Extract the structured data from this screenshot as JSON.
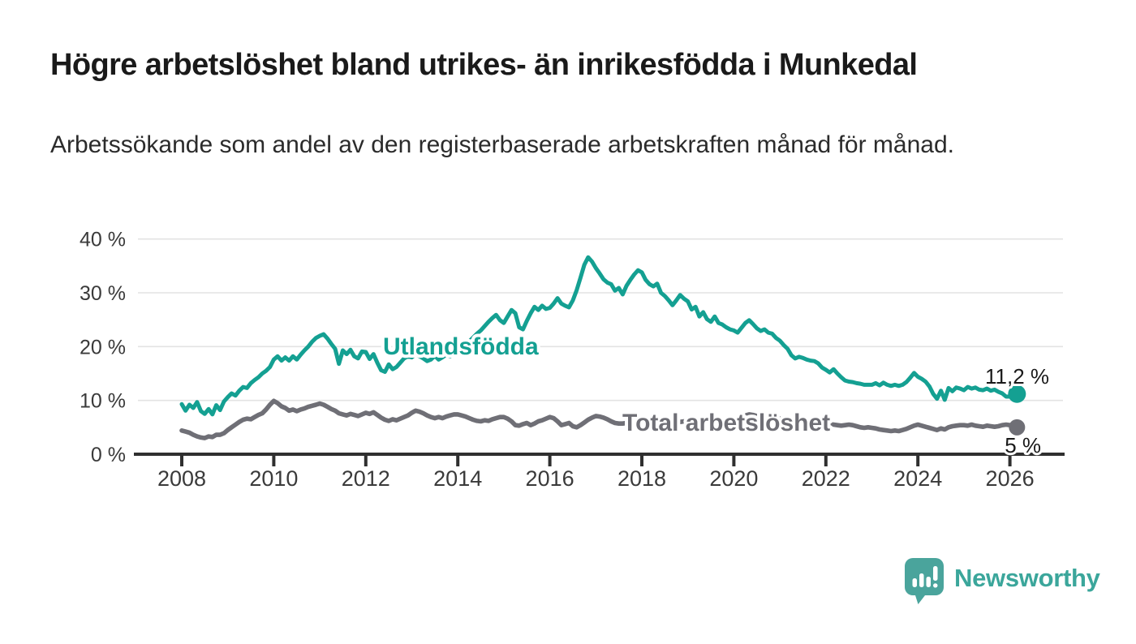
{
  "header": {
    "title": "Högre arbetslöshet bland utrikes- än inrikesfödda i Munkedal",
    "subtitle": "Arbetssökande som andel av den registerbaserade arbetskraften månad för månad."
  },
  "chart_data": {
    "type": "line",
    "title": "Högre arbetslöshet bland utrikes- än inrikesfödda i Munkedal",
    "subtitle": "Arbetssökande som andel av den registerbaserade arbetskraften månad för månad.",
    "xlabel": "",
    "ylabel": "",
    "grid": true,
    "legend_position": "inline-labels",
    "ylim": [
      0,
      40
    ],
    "x_start_year": 2008,
    "points_per_year": 12,
    "y_ticks": [
      {
        "value": 0,
        "label": "0 %"
      },
      {
        "value": 10,
        "label": "10 %"
      },
      {
        "value": 20,
        "label": "20 %"
      },
      {
        "value": 30,
        "label": "30 %"
      },
      {
        "value": 40,
        "label": "40 %"
      }
    ],
    "x_ticks": [
      {
        "value": 2008,
        "label": "2008"
      },
      {
        "value": 2010,
        "label": "2010"
      },
      {
        "value": 2012,
        "label": "2012"
      },
      {
        "value": 2014,
        "label": "2014"
      },
      {
        "value": 2016,
        "label": "2016"
      },
      {
        "value": 2018,
        "label": "2018"
      },
      {
        "value": 2020,
        "label": "2020"
      },
      {
        "value": 2022,
        "label": "2022"
      },
      {
        "value": 2024,
        "label": "2024"
      },
      {
        "value": 2026,
        "label": "2026"
      }
    ],
    "series": [
      {
        "name": "Utlandsfödda",
        "color": "#14a092",
        "end_label": "11,2 %",
        "end_value": 11.2,
        "values": [
          9.3,
          8.1,
          9.2,
          8.6,
          9.7,
          8.0,
          7.5,
          8.4,
          7.4,
          9.1,
          8.2,
          9.8,
          10.6,
          11.3,
          10.9,
          11.8,
          12.5,
          12.3,
          13.2,
          13.8,
          14.3,
          15.0,
          15.5,
          16.2,
          17.6,
          18.2,
          17.4,
          18.0,
          17.4,
          18.2,
          17.6,
          18.5,
          19.3,
          20.0,
          20.9,
          21.6,
          22.0,
          22.3,
          21.5,
          20.5,
          19.6,
          16.8,
          19.3,
          18.6,
          19.4,
          18.2,
          17.8,
          19.1,
          19.0,
          17.7,
          18.6,
          17.0,
          15.6,
          15.3,
          16.7,
          15.8,
          16.2,
          17.0,
          17.8,
          18.2,
          18.0,
          18.6,
          18.2,
          17.8,
          17.3,
          17.6,
          18.3,
          17.6,
          18.0,
          18.5,
          18.2,
          18.8,
          19.3,
          19.8,
          20.4,
          21.0,
          21.7,
          22.4,
          23.0,
          23.8,
          24.6,
          25.3,
          25.9,
          24.9,
          24.4,
          25.6,
          26.8,
          26.2,
          23.6,
          23.2,
          24.8,
          26.2,
          27.4,
          26.8,
          27.6,
          27.0,
          27.2,
          28.0,
          29.0,
          28.0,
          27.6,
          27.3,
          28.6,
          30.5,
          32.8,
          35.2,
          36.6,
          35.8,
          34.6,
          33.6,
          32.5,
          31.9,
          31.6,
          30.4,
          30.9,
          29.7,
          31.3,
          32.4,
          33.4,
          34.2,
          33.8,
          32.4,
          31.6,
          31.2,
          31.7,
          30.0,
          29.4,
          28.6,
          27.7,
          28.6,
          29.6,
          28.9,
          28.4,
          26.9,
          27.4,
          25.6,
          26.4,
          25.1,
          24.6,
          25.6,
          24.4,
          24.1,
          23.6,
          23.2,
          23.0,
          22.6,
          23.5,
          24.4,
          24.9,
          24.2,
          23.4,
          22.9,
          23.2,
          22.6,
          22.4,
          21.6,
          21.1,
          20.3,
          19.6,
          18.4,
          17.8,
          18.1,
          17.9,
          17.6,
          17.4,
          17.3,
          16.9,
          16.1,
          15.7,
          15.2,
          15.8,
          15.0,
          14.3,
          13.7,
          13.5,
          13.4,
          13.2,
          13.1,
          12.9,
          12.9,
          12.9,
          13.2,
          12.8,
          13.3,
          12.9,
          12.7,
          12.9,
          12.7,
          12.9,
          13.4,
          14.2,
          15.1,
          14.4,
          14.0,
          13.5,
          12.6,
          11.2,
          10.3,
          11.8,
          10.1,
          12.3,
          11.7,
          12.4,
          12.2,
          11.9,
          12.5,
          12.2,
          12.4,
          12.0,
          11.9,
          12.2,
          11.8,
          12.0,
          11.6,
          11.3,
          10.7,
          10.7,
          11.2
        ]
      },
      {
        "name": "Total arbetslöshet",
        "color": "#6f6f76",
        "end_label": "5 %",
        "end_value": 5.0,
        "values": [
          4.4,
          4.2,
          4.0,
          3.6,
          3.3,
          3.1,
          3.0,
          3.3,
          3.2,
          3.6,
          3.6,
          3.9,
          4.5,
          5.0,
          5.5,
          6.0,
          6.4,
          6.6,
          6.5,
          6.9,
          7.3,
          7.6,
          8.3,
          9.2,
          9.9,
          9.5,
          8.9,
          8.6,
          8.1,
          8.3,
          8.0,
          8.3,
          8.5,
          8.8,
          9.0,
          9.2,
          9.4,
          9.2,
          8.8,
          8.4,
          8.1,
          7.6,
          7.4,
          7.2,
          7.5,
          7.3,
          7.1,
          7.4,
          7.7,
          7.5,
          7.8,
          7.3,
          6.8,
          6.4,
          6.2,
          6.5,
          6.3,
          6.6,
          6.9,
          7.2,
          7.7,
          8.1,
          7.9,
          7.6,
          7.2,
          6.9,
          6.7,
          6.9,
          6.7,
          7.0,
          7.2,
          7.4,
          7.4,
          7.2,
          7.0,
          6.7,
          6.4,
          6.2,
          6.1,
          6.3,
          6.2,
          6.5,
          6.7,
          6.9,
          6.9,
          6.6,
          6.1,
          5.4,
          5.3,
          5.6,
          5.8,
          5.4,
          5.7,
          6.1,
          6.3,
          6.6,
          6.9,
          6.7,
          6.1,
          5.4,
          5.6,
          5.8,
          5.2,
          5.0,
          5.4,
          5.9,
          6.4,
          6.8,
          7.1,
          7.0,
          6.8,
          6.5,
          6.1,
          5.8,
          5.7,
          5.7,
          5.8,
          6.0,
          6.2,
          6.4,
          6.6,
          6.5,
          6.3,
          6.1,
          5.9,
          5.7,
          5.6,
          5.7,
          5.8,
          5.9,
          6.0,
          6.1,
          6.2,
          6.1,
          5.9,
          5.7,
          5.6,
          5.5,
          5.4,
          5.5,
          5.6,
          5.7,
          5.8,
          5.9,
          6.1,
          6.3,
          6.8,
          7.2,
          7.4,
          7.3,
          7.1,
          6.9,
          6.8,
          6.7,
          6.6,
          6.5,
          6.6,
          6.5,
          6.4,
          6.2,
          6.0,
          5.9,
          5.8,
          5.7,
          5.7,
          5.6,
          5.6,
          5.5,
          5.6,
          5.6,
          5.5,
          5.4,
          5.3,
          5.4,
          5.5,
          5.4,
          5.2,
          5.0,
          4.9,
          5.0,
          4.9,
          4.8,
          4.6,
          4.5,
          4.4,
          4.3,
          4.4,
          4.3,
          4.5,
          4.7,
          5.0,
          5.3,
          5.5,
          5.3,
          5.1,
          4.9,
          4.7,
          4.5,
          4.8,
          4.6,
          5.0,
          5.2,
          5.3,
          5.4,
          5.4,
          5.3,
          5.5,
          5.3,
          5.2,
          5.1,
          5.3,
          5.2,
          5.1,
          5.2,
          5.4,
          5.5,
          5.4,
          5.0
        ]
      }
    ],
    "colors": {
      "grid": "#e3e3e3",
      "axis": "#2f2f2f",
      "tick_text": "#3a3a3a",
      "annotation_text": "#1a1a1a"
    }
  },
  "footer": {
    "brand": "Newsworthy",
    "brand_color": "#3ba69b",
    "icon": "bar-chart-speech-bubble-icon"
  }
}
